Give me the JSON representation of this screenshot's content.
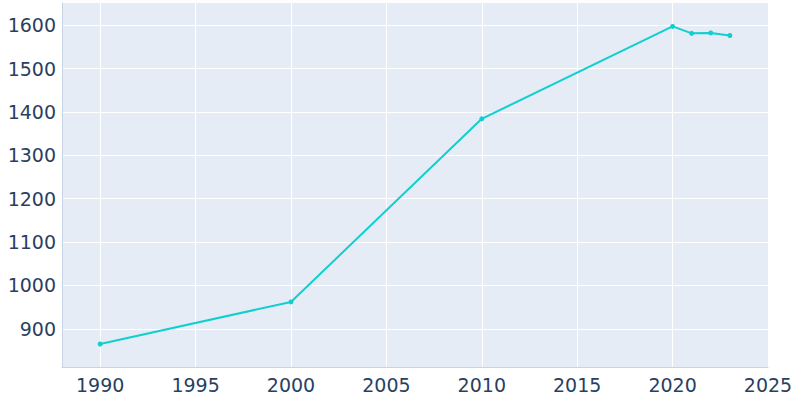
{
  "chart_data": {
    "type": "line",
    "x": [
      1990,
      2000,
      2010,
      2020,
      2021,
      2022,
      2023
    ],
    "values": [
      865,
      962,
      1384,
      1597,
      1581,
      1582,
      1576
    ],
    "color": "#0fcfcf",
    "marker": "circle",
    "xlim": [
      1988,
      2025
    ],
    "xticks": [
      1990,
      1995,
      2000,
      2005,
      2010,
      2015,
      2020,
      2025
    ],
    "ylim": [
      812,
      1651
    ],
    "yticks": [
      900,
      1000,
      1100,
      1200,
      1300,
      1400,
      1500,
      1600
    ],
    "grid": true
  }
}
